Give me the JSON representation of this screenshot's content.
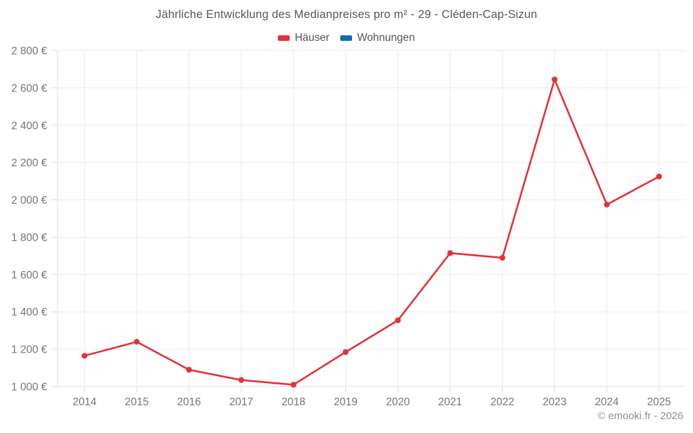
{
  "title": "Jährliche Entwicklung des Medianpreises pro m² - 29 - Cléden-Cap-Sizun",
  "legend": {
    "items": [
      {
        "label": "Häuser",
        "color": "#e23139"
      },
      {
        "label": "Wohnungen",
        "color": "#0f6fa6"
      }
    ]
  },
  "footer": "© emooki.fr - 2026",
  "chart_data": {
    "type": "line",
    "title": "Jährliche Entwicklung des Medianpreises pro m² - 29 - Cléden-Cap-Sizun",
    "categories": [
      "2014",
      "2015",
      "2016",
      "2017",
      "2018",
      "2019",
      "2020",
      "2021",
      "2022",
      "2023",
      "2024",
      "2025"
    ],
    "series": [
      {
        "name": "Häuser",
        "color": "#e23139",
        "values": [
          1165,
          1240,
          1090,
          1035,
          1010,
          1185,
          1355,
          1715,
          1690,
          2645,
          1975,
          2125
        ]
      },
      {
        "name": "Wohnungen",
        "color": "#0f6fa6",
        "values": []
      }
    ],
    "xlabel": "",
    "ylabel": "",
    "ylim": [
      1000,
      2800
    ],
    "ytick_step": 200,
    "ytick_labels": [
      "1 000 €",
      "1 200 €",
      "1 400 €",
      "1 600 €",
      "1 800 €",
      "2 000 €",
      "2 200 €",
      "2 400 €",
      "2 600 €",
      "2 800 €"
    ],
    "grid": true,
    "legend_position": "top"
  },
  "colors": {
    "grid": "#ebebeb",
    "axis": "#dddddd",
    "tick_text": "#757575",
    "title_text": "#565656",
    "footer_text": "#8f8f8f"
  }
}
